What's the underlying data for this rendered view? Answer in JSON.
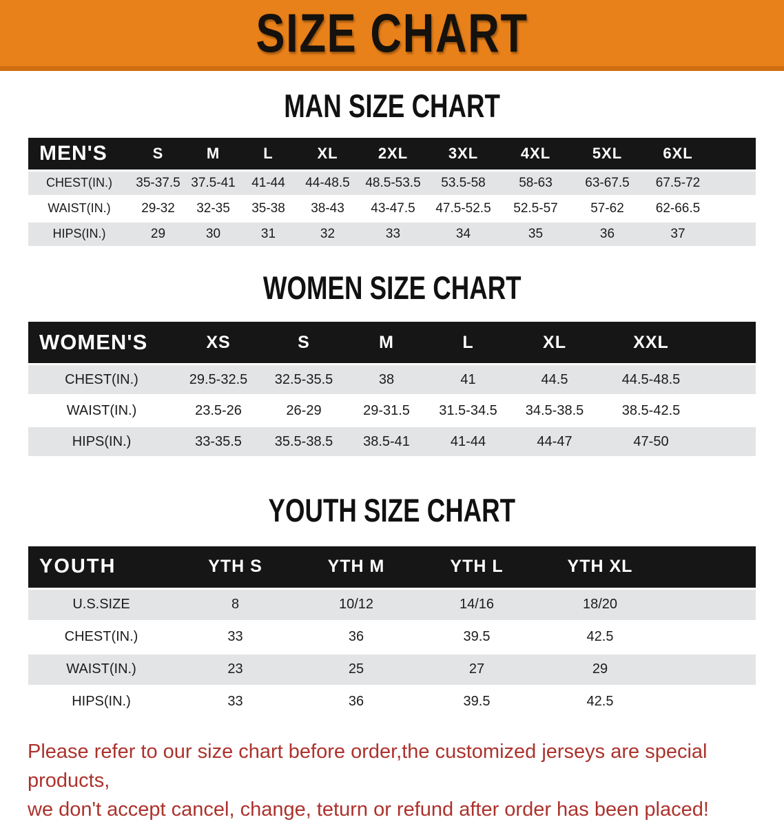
{
  "banner": {
    "title": "SIZE CHART"
  },
  "colors": {
    "banner-bg": "#E8811A",
    "banner-edge": "#CF6E10",
    "header-bg": "#161616",
    "header-text": "#FFFFFF",
    "row-shade": "#E3E4E6",
    "title-color": "#111111",
    "data-color": "#1B1B1B",
    "footnote-color": "#AC322C"
  },
  "sections": [
    {
      "id": "men",
      "title": "MAN SIZE CHART",
      "header_label": "MEN'S",
      "columns": [
        "S",
        "M",
        "L",
        "XL",
        "2XL",
        "3XL",
        "4XL",
        "5XL",
        "6XL"
      ],
      "rows": [
        {
          "label": "CHEST(IN.)",
          "values": [
            "35-37.5",
            "37.5-41",
            "41-44",
            "44-48.5",
            "48.5-53.5",
            "53.5-58",
            "58-63",
            "63-67.5",
            "67.5-72"
          ]
        },
        {
          "label": "WAIST(IN.)",
          "values": [
            "29-32",
            "32-35",
            "35-38",
            "38-43",
            "43-47.5",
            "47.5-52.5",
            "52.5-57",
            "57-62",
            "62-66.5"
          ]
        },
        {
          "label": "HIPS(IN.)",
          "values": [
            "29",
            "30",
            "31",
            "32",
            "33",
            "34",
            "35",
            "36",
            "37"
          ]
        }
      ]
    },
    {
      "id": "women",
      "title": "WOMEN SIZE CHART",
      "header_label": "WOMEN'S",
      "columns": [
        "XS",
        "S",
        "M",
        "L",
        "XL",
        "XXL"
      ],
      "rows": [
        {
          "label": "CHEST(IN.)",
          "values": [
            "29.5-32.5",
            "32.5-35.5",
            "38",
            "41",
            "44.5",
            "44.5-48.5"
          ]
        },
        {
          "label": "WAIST(IN.)",
          "values": [
            "23.5-26",
            "26-29",
            "29-31.5",
            "31.5-34.5",
            "34.5-38.5",
            "38.5-42.5"
          ]
        },
        {
          "label": "HIPS(IN.)",
          "values": [
            "33-35.5",
            "35.5-38.5",
            "38.5-41",
            "41-44",
            "44-47",
            "47-50"
          ]
        }
      ]
    },
    {
      "id": "youth",
      "title": "YOUTH SIZE CHART",
      "header_label": "YOUTH",
      "columns": [
        "YTH S",
        "YTH M",
        "YTH L",
        "YTH XL"
      ],
      "rows": [
        {
          "label": "U.S.SIZE",
          "values": [
            "8",
            "10/12",
            "14/16",
            "18/20"
          ]
        },
        {
          "label": "CHEST(IN.)",
          "values": [
            "33",
            "36",
            "39.5",
            "42.5"
          ]
        },
        {
          "label": "WAIST(IN.)",
          "values": [
            "23",
            "25",
            "27",
            "29"
          ]
        },
        {
          "label": "HIPS(IN.)",
          "values": [
            "33",
            "36",
            "39.5",
            "42.5"
          ]
        }
      ]
    }
  ],
  "footnote": {
    "line1": "Please refer to our size chart before order,the customized jerseys are special products,",
    "line2": "we don't accept cancel, change, teturn or refund after order has been placed!"
  }
}
